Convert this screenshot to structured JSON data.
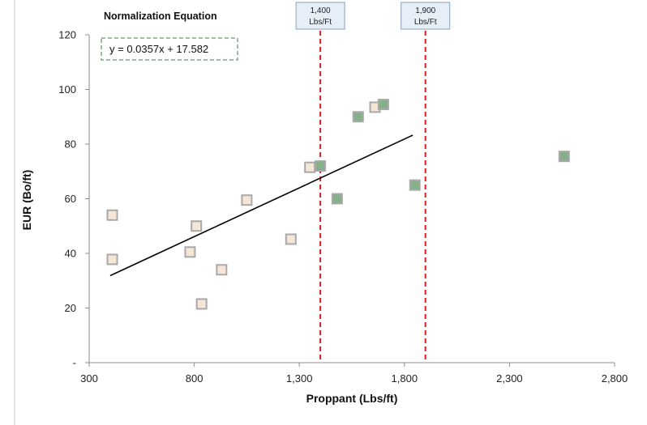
{
  "chart_data": {
    "type": "scatter",
    "title": "Normalization Equation",
    "xlabel": "Proppant (Lbs/ft)",
    "ylabel": "EUR (Bo/ft)",
    "xlim": [
      300,
      2800
    ],
    "ylim": [
      0,
      120
    ],
    "x_ticks": [
      "300",
      "800",
      "1,300",
      "1,800",
      "2,300",
      "2,800"
    ],
    "x_tick_values": [
      300,
      800,
      1300,
      1800,
      2300,
      2800
    ],
    "y_ticks": [
      "-",
      "20",
      "40",
      "60",
      "80",
      "100",
      "120"
    ],
    "y_tick_values": [
      0,
      20,
      40,
      60,
      80,
      100,
      120
    ],
    "grid": false,
    "series": [
      {
        "color": "#f5e6d8",
        "stroke": "#a9a9a9",
        "points": [
          {
            "x": 410,
            "y": 54
          },
          {
            "x": 410,
            "y": 37.8
          },
          {
            "x": 780,
            "y": 40.5
          },
          {
            "x": 810,
            "y": 50
          },
          {
            "x": 835,
            "y": 21.5
          },
          {
            "x": 930,
            "y": 34
          },
          {
            "x": 1050,
            "y": 59.5
          },
          {
            "x": 1260,
            "y": 45.2
          },
          {
            "x": 1350,
            "y": 71.5
          },
          {
            "x": 1660,
            "y": 93.5
          }
        ]
      },
      {
        "color": "#86b08a",
        "stroke": "#a9a9a9",
        "points": [
          {
            "x": 1400,
            "y": 72
          },
          {
            "x": 1480,
            "y": 60
          },
          {
            "x": 1580,
            "y": 90
          },
          {
            "x": 1700,
            "y": 94.5
          },
          {
            "x": 1850,
            "y": 65
          },
          {
            "x": 2560,
            "y": 75.5
          }
        ]
      }
    ],
    "trendline": {
      "equation": "y = 0.0357x + 17.582",
      "slope": 0.0357,
      "intercept": 17.582,
      "x_range": [
        400,
        1840
      ],
      "color": "#000000"
    },
    "reference_lines": [
      {
        "x": 1400,
        "label_line1": "1,400",
        "label_line2": "Lbs/Ft",
        "color": "#d62020"
      },
      {
        "x": 1900,
        "label_line1": "1,900",
        "label_line2": "Lbs/Ft",
        "color": "#d62020"
      }
    ],
    "equation_box_color": "#7fa77f",
    "ref_label_fill": "#e6eef8",
    "ref_label_stroke": "#8aa0bb"
  }
}
